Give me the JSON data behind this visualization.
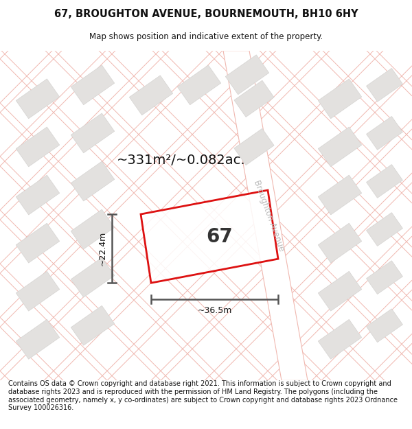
{
  "title_line1": "67, BROUGHTON AVENUE, BOURNEMOUTH, BH10 6HY",
  "title_line2": "Map shows position and indicative extent of the property.",
  "area_text": "~331m²/~0.082ac.",
  "width_label": "~36.5m",
  "height_label": "~22.4m",
  "number_label": "67",
  "street_label": "Broughton Avenue",
  "footer_text": "Contains OS data © Crown copyright and database right 2021. This information is subject to Crown copyright and database rights 2023 and is reproduced with the permission of HM Land Registry. The polygons (including the associated geometry, namely x, y co-ordinates) are subject to Crown copyright and database rights 2023 Ordnance Survey 100026316.",
  "map_bg": "#f9f8f6",
  "road_line_color": "#f0b8b0",
  "road_line_lw": 0.7,
  "block_color": "#e3e1df",
  "block_edge_color": "#d5d3d1",
  "red_color": "#dd1111",
  "dim_color": "#555555",
  "street_label_color": "#bbbbbb",
  "title_fontsize": 10.5,
  "subtitle_fontsize": 8.5,
  "footer_fontsize": 7.0,
  "area_fontsize": 14,
  "number_fontsize": 20,
  "dim_fontsize": 9,
  "street_fontsize": 8.5
}
